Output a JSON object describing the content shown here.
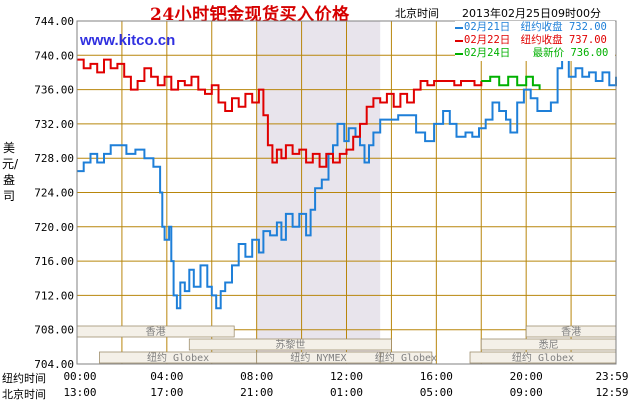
{
  "header": {
    "title": "24小时钯金现货买入价格",
    "timezone_label": "北京时间",
    "timestamp": "2013年02月25日09时00分",
    "site_url": "www.kitco.cn"
  },
  "axis": {
    "ylabel": "美元/盎司",
    "row_label_ny": "纽约时间",
    "row_label_bj": "北京时间",
    "ny_ticks": [
      "00:00",
      "04:00",
      "08:00",
      "12:00",
      "16:00",
      "20:00",
      "23:59"
    ],
    "bj_ticks": [
      "13:00",
      "17:00",
      "21:00",
      "01:00",
      "05:00",
      "09:00",
      "12:59"
    ]
  },
  "sessions": {
    "row1": [
      "香港",
      "香港"
    ],
    "row2": [
      "苏黎世",
      "悉尼"
    ],
    "row3": [
      "纽约 Globex",
      "纽约 NYMEX",
      "纽约 Globex",
      "纽约 Globex"
    ]
  },
  "legend": [
    {
      "date": "02月21日",
      "label": "纽约收盘",
      "value": "732.00",
      "color": "#1e7fd8"
    },
    {
      "date": "02月22日",
      "label": "纽约收盘",
      "value": "737.00",
      "color": "#e00000"
    },
    {
      "date": "02月24日",
      "label": "最新价",
      "value": "736.00",
      "color": "#00b000"
    }
  ],
  "colors": {
    "grid": "#b8860b",
    "plot_bg": "#ffffff",
    "nymex_band": "#e8e4ec",
    "border": "#808080",
    "blue": "#1e7fd8",
    "red": "#e00000",
    "green": "#00b000"
  },
  "chart_data": {
    "type": "line",
    "title": "24小时钯金现货买入价格",
    "xlabel": "",
    "ylabel": "美元/盎司",
    "ylim": [
      704,
      744
    ],
    "xlim": [
      0,
      24
    ],
    "y_ticks": [
      704,
      708,
      712,
      716,
      720,
      724,
      728,
      732,
      736,
      740,
      744
    ],
    "x_tick_hours": [
      0,
      4,
      8,
      12,
      16,
      20,
      24
    ],
    "grid": true,
    "legend_position": "top-right",
    "series": [
      {
        "name": "02月21日",
        "color": "#1e7fd8",
        "points": [
          [
            0.0,
            726.5
          ],
          [
            0.3,
            727.5
          ],
          [
            0.6,
            728.5
          ],
          [
            0.9,
            727.5
          ],
          [
            1.2,
            728.5
          ],
          [
            1.5,
            729.5
          ],
          [
            1.8,
            729.5
          ],
          [
            2.2,
            728.5
          ],
          [
            2.6,
            729.0
          ],
          [
            3.0,
            728.0
          ],
          [
            3.4,
            727.0
          ],
          [
            3.7,
            724.0
          ],
          [
            3.8,
            720.0
          ],
          [
            3.9,
            718.5
          ],
          [
            4.1,
            720.0
          ],
          [
            4.2,
            716.0
          ],
          [
            4.3,
            712.0
          ],
          [
            4.45,
            710.5
          ],
          [
            4.6,
            713.5
          ],
          [
            4.8,
            712.5
          ],
          [
            5.0,
            715.0
          ],
          [
            5.2,
            713.0
          ],
          [
            5.5,
            715.5
          ],
          [
            5.8,
            713.0
          ],
          [
            6.0,
            712.0
          ],
          [
            6.2,
            710.5
          ],
          [
            6.4,
            712.5
          ],
          [
            6.6,
            713.5
          ],
          [
            6.9,
            715.5
          ],
          [
            7.2,
            718.0
          ],
          [
            7.5,
            716.5
          ],
          [
            7.8,
            718.5
          ],
          [
            8.1,
            717.0
          ],
          [
            8.3,
            719.5
          ],
          [
            8.6,
            719.0
          ],
          [
            8.9,
            720.5
          ],
          [
            9.1,
            718.5
          ],
          [
            9.3,
            721.5
          ],
          [
            9.6,
            720.0
          ],
          [
            9.9,
            721.5
          ],
          [
            10.2,
            719.0
          ],
          [
            10.4,
            722.0
          ],
          [
            10.6,
            724.5
          ],
          [
            10.9,
            725.5
          ],
          [
            11.2,
            728.5
          ],
          [
            11.4,
            729.5
          ],
          [
            11.6,
            732.0
          ],
          [
            11.9,
            730.0
          ],
          [
            12.1,
            731.5
          ],
          [
            12.4,
            730.5
          ],
          [
            12.6,
            729.5
          ],
          [
            12.8,
            727.5
          ],
          [
            13.0,
            729.5
          ],
          [
            13.2,
            731.0
          ],
          [
            13.5,
            732.5
          ],
          [
            13.9,
            732.5
          ],
          [
            14.3,
            733.0
          ],
          [
            14.7,
            733.0
          ],
          [
            15.1,
            731.0
          ],
          [
            15.5,
            730.0
          ],
          [
            15.9,
            732.0
          ],
          [
            16.3,
            733.5
          ],
          [
            16.6,
            732.0
          ],
          [
            16.9,
            730.5
          ],
          [
            17.3,
            731.0
          ],
          [
            17.6,
            730.5
          ],
          [
            17.9,
            731.5
          ],
          [
            18.2,
            732.5
          ],
          [
            18.5,
            734.5
          ],
          [
            18.8,
            733.5
          ],
          [
            19.1,
            732.5
          ],
          [
            19.3,
            731.0
          ],
          [
            19.6,
            734.5
          ],
          [
            19.9,
            736.0
          ],
          [
            20.2,
            735.0
          ],
          [
            20.5,
            733.5
          ],
          [
            20.8,
            733.5
          ],
          [
            21.1,
            734.5
          ],
          [
            21.4,
            738.5
          ],
          [
            21.6,
            740.0
          ],
          [
            21.9,
            737.5
          ],
          [
            22.2,
            738.5
          ],
          [
            22.5,
            737.5
          ],
          [
            22.8,
            738.0
          ],
          [
            23.1,
            737.0
          ],
          [
            23.4,
            738.0
          ],
          [
            23.7,
            736.5
          ],
          [
            24.0,
            737.5
          ]
        ]
      },
      {
        "name": "02月22日",
        "color": "#e00000",
        "points": [
          [
            0.0,
            739.5
          ],
          [
            0.3,
            738.5
          ],
          [
            0.6,
            739.0
          ],
          [
            0.9,
            738.0
          ],
          [
            1.2,
            739.5
          ],
          [
            1.5,
            738.5
          ],
          [
            1.8,
            739.0
          ],
          [
            2.1,
            737.5
          ],
          [
            2.4,
            736.0
          ],
          [
            2.7,
            737.0
          ],
          [
            3.0,
            738.5
          ],
          [
            3.3,
            737.5
          ],
          [
            3.6,
            736.5
          ],
          [
            3.9,
            737.5
          ],
          [
            4.2,
            736.0
          ],
          [
            4.5,
            737.0
          ],
          [
            4.8,
            736.5
          ],
          [
            5.1,
            737.5
          ],
          [
            5.4,
            736.0
          ],
          [
            5.7,
            735.5
          ],
          [
            6.0,
            736.5
          ],
          [
            6.3,
            734.5
          ],
          [
            6.6,
            733.5
          ],
          [
            6.9,
            735.0
          ],
          [
            7.2,
            734.0
          ],
          [
            7.5,
            735.5
          ],
          [
            7.8,
            734.5
          ],
          [
            8.1,
            736.0
          ],
          [
            8.3,
            733.0
          ],
          [
            8.5,
            729.5
          ],
          [
            8.7,
            727.5
          ],
          [
            8.9,
            729.0
          ],
          [
            9.1,
            728.0
          ],
          [
            9.3,
            729.5
          ],
          [
            9.6,
            728.5
          ],
          [
            9.9,
            729.0
          ],
          [
            10.2,
            727.5
          ],
          [
            10.5,
            728.5
          ],
          [
            10.8,
            727.0
          ],
          [
            11.1,
            728.5
          ],
          [
            11.4,
            727.5
          ],
          [
            11.7,
            728.5
          ],
          [
            12.0,
            729.0
          ],
          [
            12.3,
            730.5
          ],
          [
            12.6,
            732.0
          ],
          [
            12.9,
            734.0
          ],
          [
            13.2,
            735.0
          ],
          [
            13.5,
            734.5
          ],
          [
            13.8,
            735.5
          ],
          [
            14.1,
            734.0
          ],
          [
            14.4,
            735.5
          ],
          [
            14.7,
            734.5
          ],
          [
            15.0,
            736.0
          ],
          [
            15.3,
            737.0
          ],
          [
            15.6,
            736.5
          ],
          [
            15.9,
            737.0
          ],
          [
            16.2,
            737.0
          ],
          [
            16.5,
            737.0
          ],
          [
            16.8,
            736.5
          ],
          [
            17.1,
            737.0
          ],
          [
            17.4,
            737.0
          ],
          [
            17.7,
            736.5
          ],
          [
            18.0,
            737.0
          ]
        ]
      },
      {
        "name": "02月24日",
        "color": "#00b000",
        "points": [
          [
            18.0,
            737.0
          ],
          [
            18.4,
            737.5
          ],
          [
            18.8,
            736.5
          ],
          [
            19.2,
            737.5
          ],
          [
            19.6,
            736.5
          ],
          [
            20.0,
            737.5
          ],
          [
            20.3,
            736.5
          ],
          [
            20.6,
            736.0
          ]
        ]
      }
    ]
  }
}
